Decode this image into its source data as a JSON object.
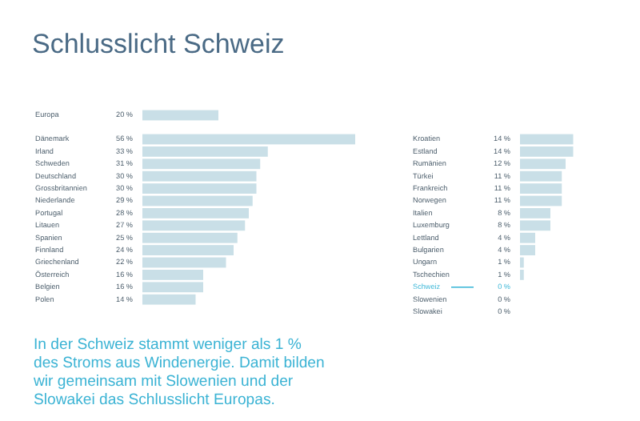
{
  "chart_data": [
    {
      "type": "bar",
      "orientation": "horizontal",
      "title": "Schlusslicht Schweiz",
      "categories": [
        "Europa"
      ],
      "values": [
        20
      ],
      "value_labels": [
        "20 %"
      ],
      "colors": [
        "#c9dfe7"
      ]
    },
    {
      "type": "bar",
      "orientation": "horizontal",
      "categories": [
        "Dänemark",
        "Irland",
        "Schweden",
        "Deutschland",
        "Grossbritannien",
        "Niederlande",
        "Portugal",
        "Litauen",
        "Spanien",
        "Finnland",
        "Griechenland",
        "Österreich",
        "Belgien",
        "Polen"
      ],
      "values": [
        56,
        33,
        31,
        30,
        30,
        29,
        28,
        27,
        25,
        24,
        22,
        16,
        16,
        14
      ],
      "value_labels": [
        "56 %",
        "33 %",
        "31 %",
        "30 %",
        "30 %",
        "29 %",
        "28 %",
        "27 %",
        "25 %",
        "24 %",
        "22 %",
        "16 %",
        "16 %",
        "14 %"
      ],
      "colors": [
        "#c9dfe7",
        "#c9dfe7",
        "#c9dfe7",
        "#c9dfe7",
        "#c9dfe7",
        "#c9dfe7",
        "#c9dfe7",
        "#c9dfe7",
        "#c9dfe7",
        "#c9dfe7",
        "#c9dfe7",
        "#c9dfe7",
        "#c9dfe7",
        "#c9dfe7"
      ],
      "annotations": [
        "In der Schweiz stammt weniger als 1 % des Stroms aus Windenergie. Damit bilden wir gemeinsam mit Slowenien und der Slowakei das Schlusslicht Europas."
      ]
    },
    {
      "type": "bar",
      "orientation": "horizontal",
      "categories": [
        "Kroatien",
        "Estland",
        "Rumänien",
        "Türkei",
        "Frankreich",
        "Norwegen",
        "Italien",
        "Luxemburg",
        "Lettland",
        "Bulgarien",
        "Ungarn",
        "Tschechien",
        "Schweiz",
        "Slowenien",
        "Slowakei"
      ],
      "values": [
        14,
        14,
        12,
        11,
        11,
        11,
        8,
        8,
        4,
        4,
        1,
        1,
        0,
        0,
        0
      ],
      "value_labels": [
        "14 %",
        "14 %",
        "12 %",
        "11 %",
        "11 %",
        "11 %",
        "8 %",
        "8 %",
        "4 %",
        "4 %",
        "1 %",
        "1 %",
        "0 %",
        "0 %",
        "0 %"
      ],
      "colors": [
        "#c9dfe7",
        "#c9dfe7",
        "#c9dfe7",
        "#c9dfe7",
        "#c9dfe7",
        "#c9dfe7",
        "#c9dfe7",
        "#c9dfe7",
        "#c9dfe7",
        "#c9dfe7",
        "#c9dfe7",
        "#c9dfe7",
        "#3fb8d8",
        "#c9dfe7",
        "#c9dfe7"
      ]
    }
  ]
}
